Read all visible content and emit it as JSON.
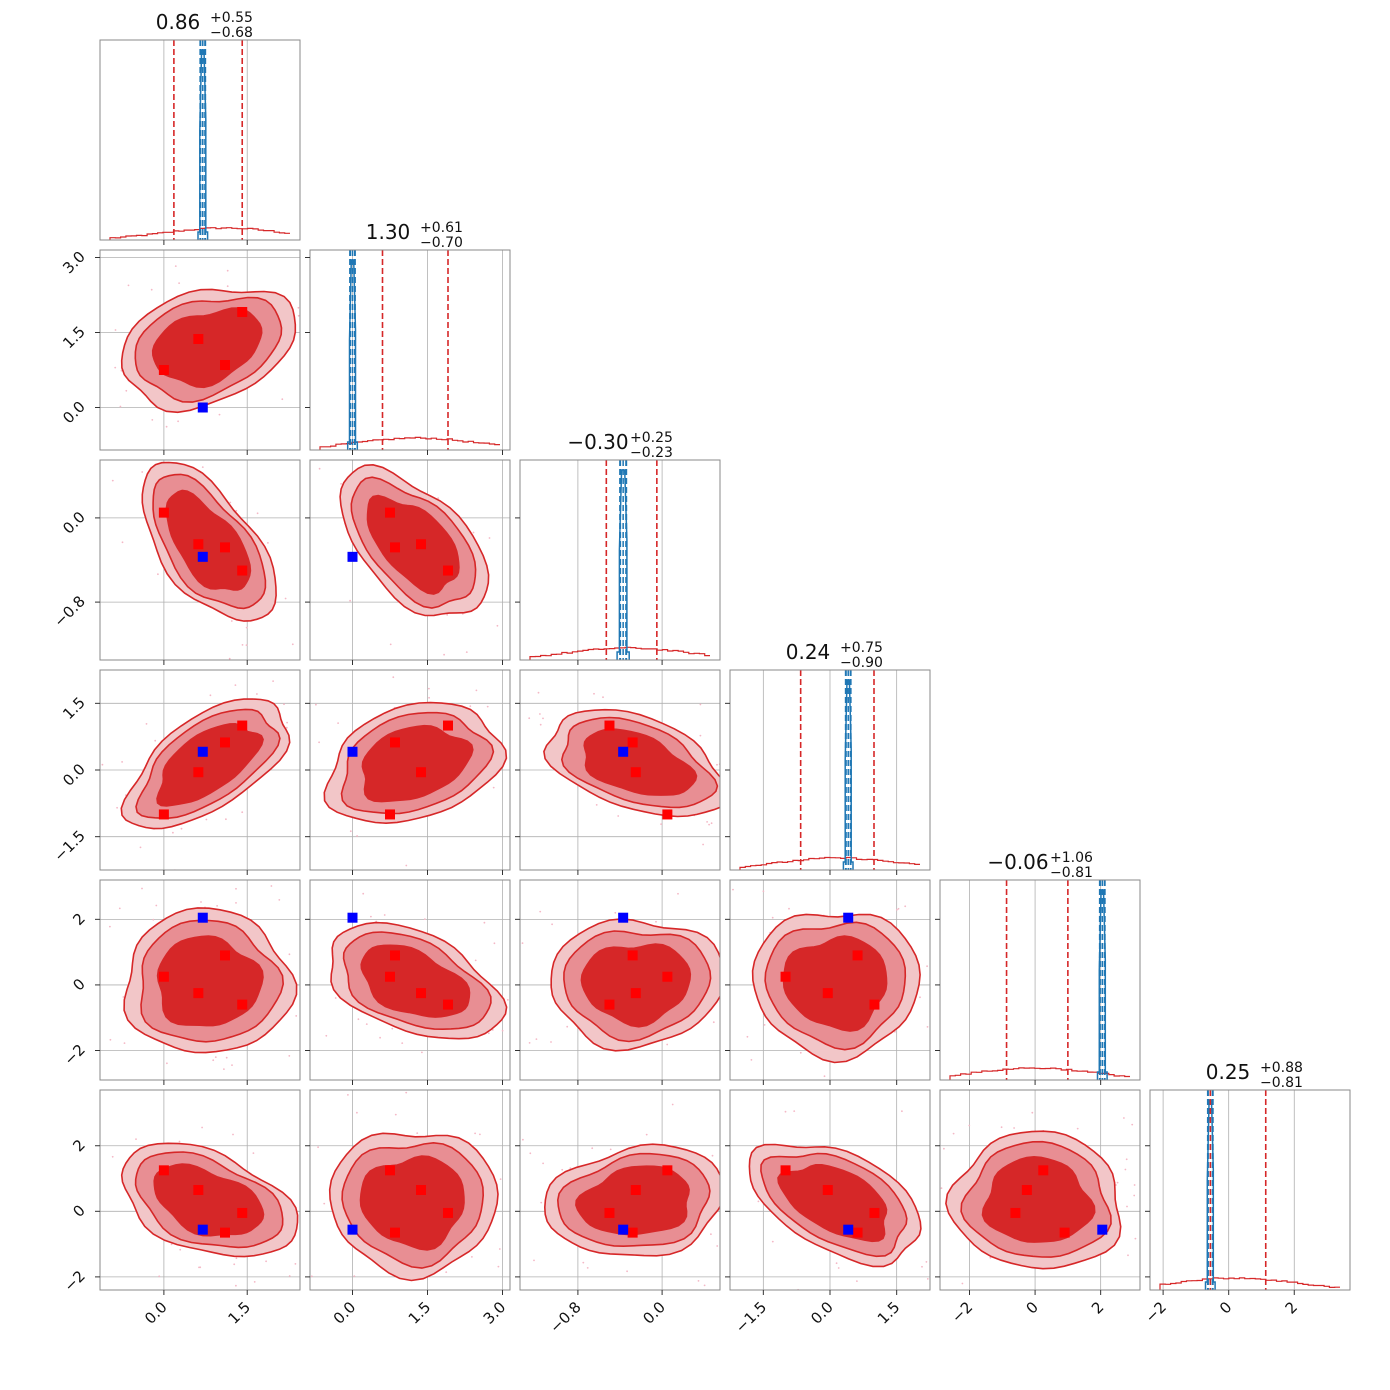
{
  "chart_data": {
    "type": "corner",
    "n_params": 6,
    "colors": {
      "posterior": "#d62728",
      "level1": "#f2c6c8",
      "level2": "#e88e93",
      "level3": "#d62728",
      "truth_hist": "#1f77b4",
      "marker_red": "#ff0000",
      "marker_blue": "#0000ff",
      "scatter": "#f4b8c6"
    },
    "grid": true,
    "params": [
      {
        "range": [
          -1.15,
          2.45
        ],
        "ticks": [
          0.0,
          1.5
        ],
        "tick_labels": [
          "0.0",
          "1.5"
        ],
        "title": {
          "main": "0.86",
          "plus": "+0.55",
          "minus": "−0.68"
        },
        "quantiles": [
          0.18,
          1.41
        ],
        "narrow": {
          "center": 0.7,
          "width": 0.012
        },
        "broad_peak": 1.1
      },
      {
        "range": [
          -0.85,
          3.15
        ],
        "ticks": [
          0.0,
          1.5,
          3.0
        ],
        "tick_labels": [
          "0.0",
          "1.5",
          "3.0"
        ],
        "title": {
          "main": "1.30",
          "plus": "+0.61",
          "minus": "−0.70"
        },
        "quantiles": [
          0.6,
          1.91
        ],
        "narrow": {
          "center": 0.0,
          "width": 0.018
        },
        "broad_peak": 1.3
      },
      {
        "range": [
          -1.35,
          0.55
        ],
        "ticks": [
          -0.8,
          0.0
        ],
        "tick_labels": [
          "−0.8",
          "0.0"
        ],
        "title": {
          "main": "−0.30",
          "plus": "+0.25",
          "minus": "−0.23"
        },
        "quantiles": [
          -0.53,
          -0.05
        ],
        "narrow": {
          "center": -0.37,
          "width": 0.012
        },
        "broad_peak": -0.32
      },
      {
        "range": [
          -2.25,
          2.25
        ],
        "ticks": [
          -1.5,
          0.0,
          1.5
        ],
        "tick_labels": [
          "−1.5",
          "0.0",
          "1.5"
        ],
        "title": {
          "main": "0.24",
          "plus": "+0.75",
          "minus": "−0.90"
        },
        "quantiles": [
          -0.66,
          0.99
        ],
        "narrow": {
          "center": 0.41,
          "width": 0.015
        },
        "broad_peak": 0.2
      },
      {
        "range": [
          -2.9,
          3.2
        ],
        "ticks": [
          -2,
          0,
          2
        ],
        "tick_labels": [
          "−2",
          "0",
          "2"
        ],
        "title": {
          "main": "−0.06",
          "plus": "+1.06",
          "minus": "−0.81"
        },
        "quantiles": [
          -0.87,
          1.0
        ],
        "narrow": {
          "center": 2.05,
          "width": 0.02
        },
        "broad_peak": 0.0
      },
      {
        "range": [
          -2.4,
          3.7
        ],
        "ticks": [
          -2,
          0,
          2
        ],
        "tick_labels": [
          "−2",
          "0",
          "2"
        ],
        "title": {
          "main": "0.25",
          "plus": "+0.88",
          "minus": "−0.81"
        },
        "quantiles": [
          -0.56,
          1.13
        ],
        "narrow": {
          "center": -0.56,
          "width": 0.02
        },
        "broad_peak": 0.2
      }
    ],
    "red_points": [
      [
        0.0,
        0.75,
        0.05,
        -1.0,
        0.25,
        1.25
      ],
      [
        0.62,
        1.37,
        -0.25,
        -0.05,
        -0.25,
        0.65
      ],
      [
        1.1,
        0.85,
        -0.28,
        0.62,
        0.9,
        -0.65
      ],
      [
        1.41,
        1.91,
        -0.5,
        1.0,
        -0.6,
        -0.05
      ]
    ],
    "blue_point": [
      0.7,
      0.0,
      -0.37,
      0.41,
      2.05,
      -0.56
    ]
  }
}
